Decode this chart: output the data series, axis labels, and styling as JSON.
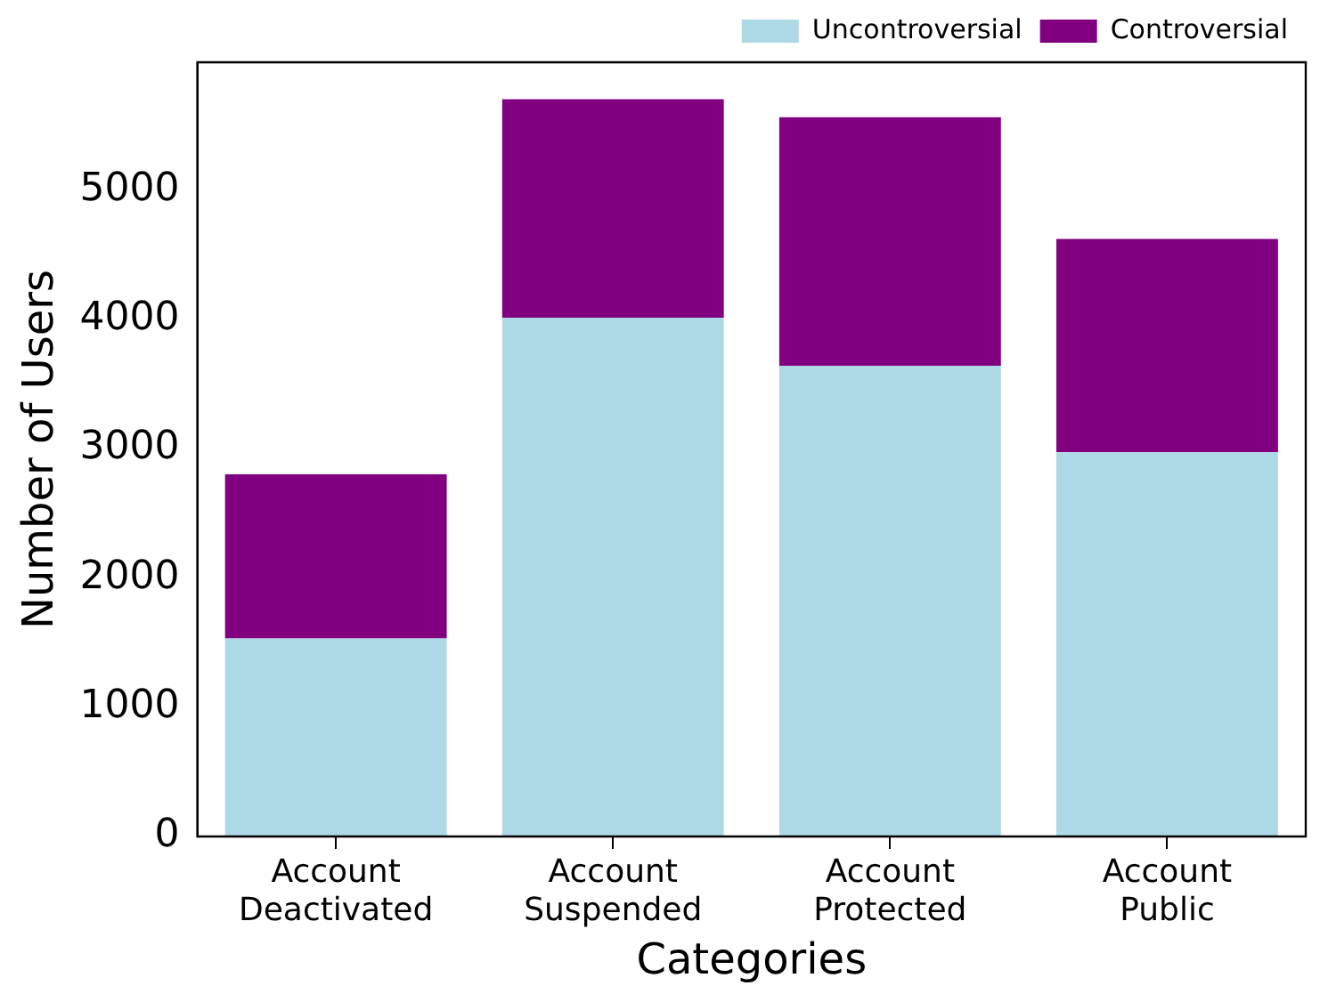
{
  "chart_data": {
    "type": "bar",
    "xlabel": "Categories",
    "ylabel": "Number of Users",
    "categories": [
      "Account Deactivated",
      "Account Suspended",
      "Account Protected",
      "Account Public"
    ],
    "stacked": true,
    "legend": "top right",
    "grid": false,
    "ylim": [
      0,
      5985
    ],
    "yticks": [
      0,
      1000,
      2000,
      3000,
      4000,
      5000
    ],
    "series": [
      {
        "name": "Uncontroversial",
        "color": "#add8e6",
        "values": [
          1530,
          4010,
          3640,
          2970
        ]
      },
      {
        "name": "Controversial",
        "color": "#800080",
        "values": [
          1270,
          1690,
          1920,
          1650
        ]
      }
    ]
  }
}
